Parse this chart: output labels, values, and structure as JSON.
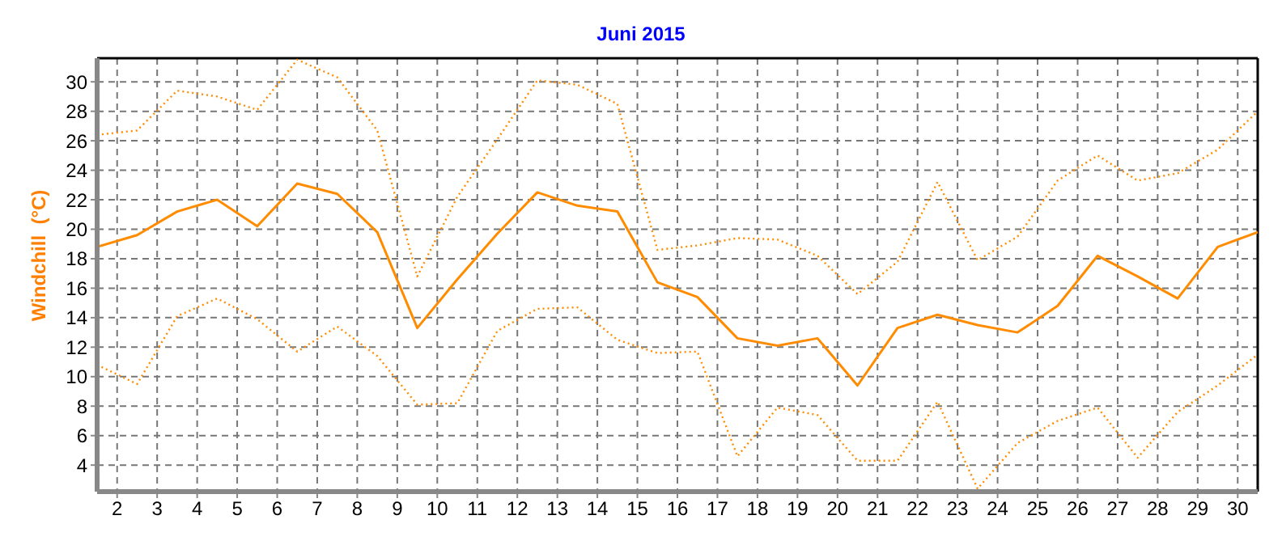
{
  "chart_data": {
    "type": "line",
    "title": "Juni 2015",
    "ylabel": "Windchill  (°C)",
    "x": [
      1.5,
      2.5,
      3.5,
      4.5,
      5.5,
      6.5,
      7.5,
      8.5,
      9.5,
      10.5,
      11.5,
      12.5,
      13.5,
      14.5,
      15.5,
      16.5,
      17.5,
      18.5,
      19.5,
      20.5,
      21.5,
      22.5,
      23.5,
      24.5,
      25.5,
      26.5,
      27.5,
      28.5,
      29.5,
      30.5
    ],
    "series": [
      {
        "color": "#ff8c00",
        "line_style": "dotted",
        "values": [
          26.4,
          26.7,
          29.4,
          29.0,
          28.1,
          31.5,
          30.3,
          26.7,
          16.8,
          22.2,
          26.1,
          30.1,
          29.8,
          28.5,
          18.6,
          18.9,
          19.4,
          19.3,
          18.2,
          15.6,
          17.8,
          23.2,
          17.9,
          19.5,
          23.3,
          25.0,
          23.3,
          23.8,
          25.4,
          28.0
        ]
      },
      {
        "color": "#ff8c00",
        "line_style": "solid",
        "values": [
          18.8,
          19.6,
          21.2,
          22.0,
          20.2,
          23.1,
          22.4,
          19.8,
          13.3,
          16.6,
          19.7,
          22.5,
          21.6,
          21.2,
          16.4,
          15.4,
          12.6,
          12.1,
          12.6,
          9.4,
          13.3,
          14.2,
          13.5,
          13.0,
          14.8,
          18.2,
          16.8,
          15.3,
          18.8,
          19.8
        ]
      },
      {
        "color": "#ff8c00",
        "line_style": "dotted",
        "values": [
          10.8,
          9.5,
          14.1,
          15.3,
          13.9,
          11.7,
          13.4,
          11.4,
          8.1,
          8.2,
          13.1,
          14.6,
          14.7,
          12.5,
          11.6,
          11.7,
          4.6,
          7.9,
          7.4,
          4.3,
          4.3,
          8.3,
          2.4,
          5.5,
          7.0,
          7.9,
          4.5,
          7.6,
          9.4,
          11.5
        ]
      }
    ],
    "xlim": [
      1.5,
      30.5
    ],
    "xticks": [
      2,
      3,
      4,
      5,
      6,
      7,
      8,
      9,
      10,
      11,
      12,
      13,
      14,
      15,
      16,
      17,
      18,
      19,
      20,
      21,
      22,
      23,
      24,
      25,
      26,
      27,
      28,
      29,
      30
    ],
    "ylim": [
      2.2,
      31.6
    ],
    "yticks": [
      4,
      6,
      8,
      10,
      12,
      14,
      16,
      18,
      20,
      22,
      24,
      26,
      28,
      30
    ],
    "grid": true,
    "marker": "none"
  }
}
